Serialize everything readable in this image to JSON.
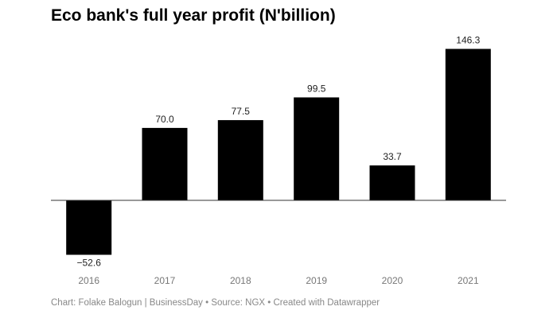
{
  "chart_data": {
    "type": "bar",
    "title": "Eco bank's full year profit (N'billion)",
    "categories": [
      "2016",
      "2017",
      "2018",
      "2019",
      "2020",
      "2021"
    ],
    "values": [
      -52.6,
      70.0,
      77.5,
      99.5,
      33.7,
      146.3
    ],
    "value_labels": [
      "−52.6",
      "70.0",
      "77.5",
      "99.5",
      "33.7",
      "146.3"
    ],
    "bar_color": "#000000",
    "baseline_color": "#333333",
    "xlabel": "",
    "ylabel": "",
    "grid": false,
    "legend": "none"
  },
  "footer": "Chart: Folake Balogun | BusinessDay • Source: NGX • Created with Datawrapper"
}
